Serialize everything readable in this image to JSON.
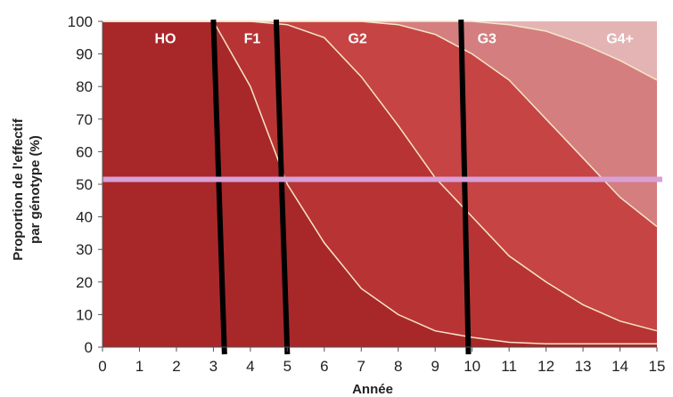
{
  "chart_data": {
    "type": "area",
    "stacked": true,
    "xlabel": "Année",
    "ylabel": [
      "Proportion  de l'effectif",
      "par génotype (%)"
    ],
    "xlim": [
      0,
      15
    ],
    "ylim": [
      0,
      100
    ],
    "x": [
      0,
      1,
      2,
      3,
      4,
      5,
      6,
      7,
      8,
      9,
      10,
      11,
      12,
      13,
      14,
      15
    ],
    "xticks": [
      "0",
      "1",
      "2",
      "3",
      "4",
      "5",
      "6",
      "7",
      "8",
      "9",
      "10",
      "11",
      "12",
      "13",
      "14",
      "15"
    ],
    "yticks": [
      "0",
      "10",
      "20",
      "30",
      "40",
      "50",
      "60",
      "70",
      "80",
      "90",
      "100"
    ],
    "grid": false,
    "series": [
      {
        "name": "HO",
        "color": "#a8282a",
        "values": [
          0,
          0,
          0,
          0,
          0,
          0,
          0,
          0,
          0,
          0,
          0,
          0,
          0,
          0,
          0,
          0
        ]
      },
      {
        "name": "F1",
        "color": "#b83434",
        "values": [
          0,
          0,
          0,
          0,
          0,
          0,
          0,
          0,
          0,
          0,
          0,
          0,
          0,
          0,
          0,
          0
        ]
      }
    ],
    "boundaries": [
      {
        "name": "HO/F1",
        "values": [
          100,
          100,
          100,
          100,
          80,
          50,
          32,
          18,
          10,
          5,
          3,
          1.5,
          1,
          1,
          1,
          1
        ]
      },
      {
        "name": "F1/G2",
        "values": [
          100,
          100,
          100,
          100,
          100,
          99,
          95,
          83,
          68,
          52,
          40,
          28,
          20,
          13,
          8,
          5
        ]
      },
      {
        "name": "G2/G3",
        "values": [
          100,
          100,
          100,
          100,
          100,
          100,
          100,
          100,
          99,
          96,
          90,
          82,
          70,
          58,
          46,
          37
        ]
      },
      {
        "name": "G3/G4+",
        "values": [
          100,
          100,
          100,
          100,
          100,
          100,
          100,
          100,
          100,
          100,
          100,
          99,
          97,
          93,
          88,
          82
        ]
      }
    ],
    "band_labels": [
      {
        "text": "HO",
        "x": 1.7,
        "y": 95
      },
      {
        "text": "F1",
        "x": 4.05,
        "y": 95
      },
      {
        "text": "G2",
        "x": 6.9,
        "y": 95
      },
      {
        "text": "G3",
        "x": 10.4,
        "y": 95
      },
      {
        "text": "G4+",
        "x": 14.0,
        "y": 95
      }
    ],
    "band_colors": [
      "#a8282a",
      "#b83434",
      "#c64444",
      "#d47e80",
      "#e4b4b4"
    ],
    "vertical_markers": [
      {
        "x_top": 3.0,
        "x_bottom": 3.3
      },
      {
        "x_top": 4.7,
        "x_bottom": 5.0
      },
      {
        "x_top": 9.7,
        "x_bottom": 9.9
      }
    ],
    "horizontal_marker": {
      "y": 51.5,
      "color": "#d9a0d6"
    }
  }
}
